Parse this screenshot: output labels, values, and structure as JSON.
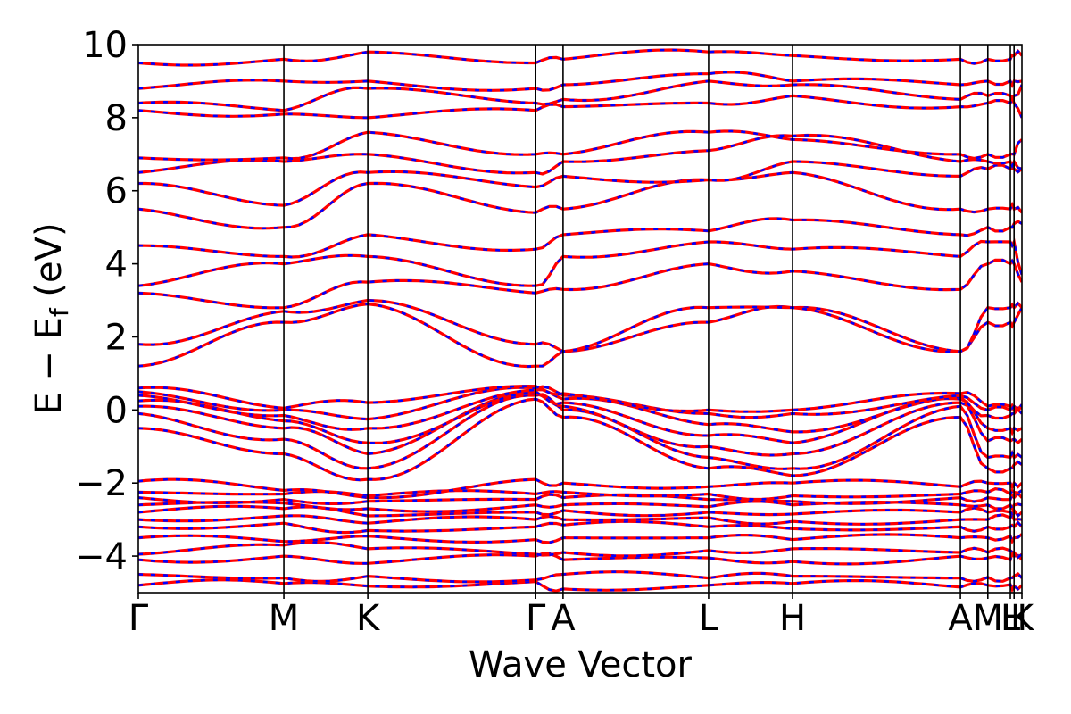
{
  "chart_data": {
    "type": "line",
    "xlabel": "Wave Vector",
    "ylabel_parts": [
      "E − E",
      "f",
      " (eV)"
    ],
    "ylim": [
      -5,
      10
    ],
    "yticks": [
      -4,
      -2,
      0,
      2,
      4,
      6,
      8,
      10
    ],
    "ytick_labels": [
      "−4",
      "−2",
      "0",
      "2",
      "4",
      "6",
      "8",
      "10"
    ],
    "grid": false,
    "kpath": {
      "labels": [
        "Γ",
        "M",
        "K",
        "Γ",
        "A",
        "L",
        "H",
        "A",
        "M",
        "L",
        "H",
        "K"
      ],
      "positions": [
        0.0,
        0.1647,
        0.2597,
        0.4497,
        0.4807,
        0.6454,
        0.7404,
        0.9304,
        0.9614,
        0.9869,
        0.9911,
        1.0
      ]
    },
    "colors": {
      "spin_up": "#ff0000",
      "spin_down": "#0000ff",
      "axis": "#000000"
    },
    "series": [
      {
        "values": [
          -4.8,
          -4.75,
          -4.82,
          -4.7,
          -4.9,
          -4.8,
          -4.75,
          -4.85,
          -4.8,
          -4.78,
          -4.82,
          -4.8
        ]
      },
      {
        "values": [
          -4.5,
          -4.6,
          -4.55,
          -4.65,
          -4.5,
          -4.6,
          -4.55,
          -4.6,
          -4.58,
          -4.6,
          -4.55,
          -4.6
        ]
      },
      {
        "values": [
          -4.1,
          -4.0,
          -4.2,
          -4.0,
          -4.1,
          -4.05,
          -4.15,
          -4.0,
          -4.05,
          -4.1,
          -4.0,
          -4.1
        ]
      },
      {
        "values": [
          -3.95,
          -3.7,
          -3.8,
          -3.95,
          -3.9,
          -3.85,
          -3.8,
          -3.9,
          -3.9,
          -3.85,
          -3.9,
          -3.95
        ]
      },
      {
        "values": [
          -3.5,
          -3.6,
          -3.45,
          -3.55,
          -3.5,
          -3.5,
          -3.55,
          -3.5,
          -3.5,
          -3.45,
          -3.5,
          -3.4
        ]
      },
      {
        "values": [
          -3.2,
          -3.1,
          -3.3,
          -3.2,
          -3.15,
          -3.2,
          -3.25,
          -3.2,
          -3.2,
          -3.2,
          -3.2,
          -3.2
        ]
      },
      {
        "values": [
          -3.0,
          -2.9,
          -3.1,
          -3.0,
          -3.0,
          -2.95,
          -3.05,
          -3.0,
          -3.0,
          -2.95,
          -3.0,
          -3.0
        ]
      },
      {
        "values": [
          -2.8,
          -2.7,
          -2.9,
          -2.8,
          -2.75,
          -2.8,
          -2.85,
          -2.8,
          -2.8,
          -2.8,
          -2.75,
          -2.8
        ]
      },
      {
        "values": [
          -2.6,
          -2.55,
          -2.7,
          -2.6,
          -2.6,
          -2.65,
          -2.6,
          -2.6,
          -2.6,
          -2.6,
          -2.6,
          -2.6
        ]
      },
      {
        "values": [
          -2.4,
          -2.45,
          -2.5,
          -2.45,
          -2.4,
          -2.45,
          -2.5,
          -2.4,
          -2.4,
          -2.45,
          -2.4,
          -2.4
        ]
      },
      {
        "values": [
          -2.25,
          -2.3,
          -2.35,
          -2.3,
          -2.25,
          -2.3,
          -2.35,
          -2.3,
          -2.25,
          -2.3,
          -2.25,
          -2.2
        ]
      },
      {
        "values": [
          -1.95,
          -2.2,
          -2.4,
          -1.9,
          -2.0,
          -2.1,
          -2.0,
          -2.1,
          -2.0,
          -2.0,
          -2.0,
          -2.0
        ]
      },
      {
        "values": [
          -0.5,
          -1.2,
          -1.9,
          0.3,
          -0.2,
          -1.6,
          -1.8,
          -0.2,
          -1.6,
          -1.6,
          -1.5,
          -1.5
        ]
      },
      {
        "values": [
          -0.1,
          -0.8,
          -1.6,
          0.4,
          0.0,
          -1.3,
          -1.6,
          0.1,
          -1.3,
          -1.3,
          -1.3,
          -1.3
        ]
      },
      {
        "values": [
          0.1,
          -0.5,
          -1.2,
          0.45,
          0.1,
          -1.0,
          -1.2,
          0.2,
          -0.85,
          -0.85,
          -0.8,
          -0.8
        ]
      },
      {
        "values": [
          0.25,
          -0.3,
          -0.9,
          0.5,
          0.2,
          -0.7,
          -0.9,
          0.3,
          -0.5,
          -0.5,
          -0.5,
          -0.5
        ]
      },
      {
        "values": [
          0.4,
          -0.15,
          -0.5,
          0.55,
          0.3,
          -0.4,
          -0.6,
          0.35,
          -0.15,
          -0.15,
          -0.1,
          -0.1
        ]
      },
      {
        "values": [
          0.5,
          0.0,
          -0.25,
          0.6,
          0.4,
          -0.1,
          -0.1,
          0.4,
          0.0,
          0.0,
          0.0,
          0.05
        ]
      },
      {
        "values": [
          0.6,
          0.05,
          0.2,
          0.65,
          0.45,
          0.0,
          0.0,
          0.45,
          0.1,
          0.1,
          0.1,
          0.15
        ]
      },
      {
        "values": [
          1.2,
          2.4,
          2.9,
          1.2,
          1.6,
          2.4,
          2.8,
          1.6,
          2.4,
          2.4,
          2.4,
          2.8
        ]
      },
      {
        "values": [
          1.8,
          2.7,
          3.0,
          1.8,
          1.6,
          2.8,
          2.8,
          1.6,
          2.8,
          2.8,
          2.8,
          2.8
        ]
      },
      {
        "values": [
          3.2,
          2.8,
          3.5,
          3.2,
          3.3,
          4.0,
          3.8,
          3.3,
          4.0,
          4.0,
          4.0,
          3.5
        ]
      },
      {
        "values": [
          3.4,
          4.0,
          4.2,
          3.4,
          4.2,
          4.6,
          4.4,
          4.2,
          4.6,
          4.6,
          4.6,
          3.7
        ]
      },
      {
        "values": [
          4.5,
          4.2,
          4.8,
          4.4,
          4.8,
          4.9,
          5.2,
          4.8,
          5.0,
          5.0,
          5.1,
          5.1
        ]
      },
      {
        "values": [
          5.5,
          5.0,
          6.2,
          5.4,
          5.5,
          6.3,
          6.5,
          5.5,
          5.5,
          5.5,
          5.5,
          5.4
        ]
      },
      {
        "values": [
          6.2,
          5.6,
          6.5,
          6.1,
          6.4,
          6.3,
          6.8,
          6.4,
          6.6,
          6.6,
          6.6,
          6.6
        ]
      },
      {
        "values": [
          6.5,
          6.8,
          7.0,
          6.5,
          6.8,
          7.1,
          7.5,
          6.8,
          6.8,
          6.8,
          6.8,
          6.6
        ]
      },
      {
        "values": [
          6.9,
          6.9,
          7.6,
          7.0,
          7.0,
          7.6,
          7.4,
          7.0,
          7.0,
          7.0,
          7.0,
          7.4
        ]
      },
      {
        "values": [
          8.2,
          8.1,
          8.0,
          8.2,
          8.3,
          8.4,
          8.6,
          8.3,
          8.4,
          8.4,
          8.4,
          8.0
        ]
      },
      {
        "values": [
          8.4,
          8.2,
          8.8,
          8.4,
          8.5,
          9.0,
          8.9,
          8.5,
          8.6,
          8.6,
          8.6,
          8.9
        ]
      },
      {
        "values": [
          8.8,
          9.0,
          9.0,
          8.8,
          8.9,
          9.2,
          9.0,
          8.9,
          9.0,
          9.0,
          9.0,
          9.0
        ]
      },
      {
        "values": [
          9.5,
          9.6,
          9.8,
          9.5,
          9.6,
          9.8,
          9.7,
          9.6,
          9.6,
          9.6,
          9.7,
          9.7
        ]
      }
    ]
  }
}
